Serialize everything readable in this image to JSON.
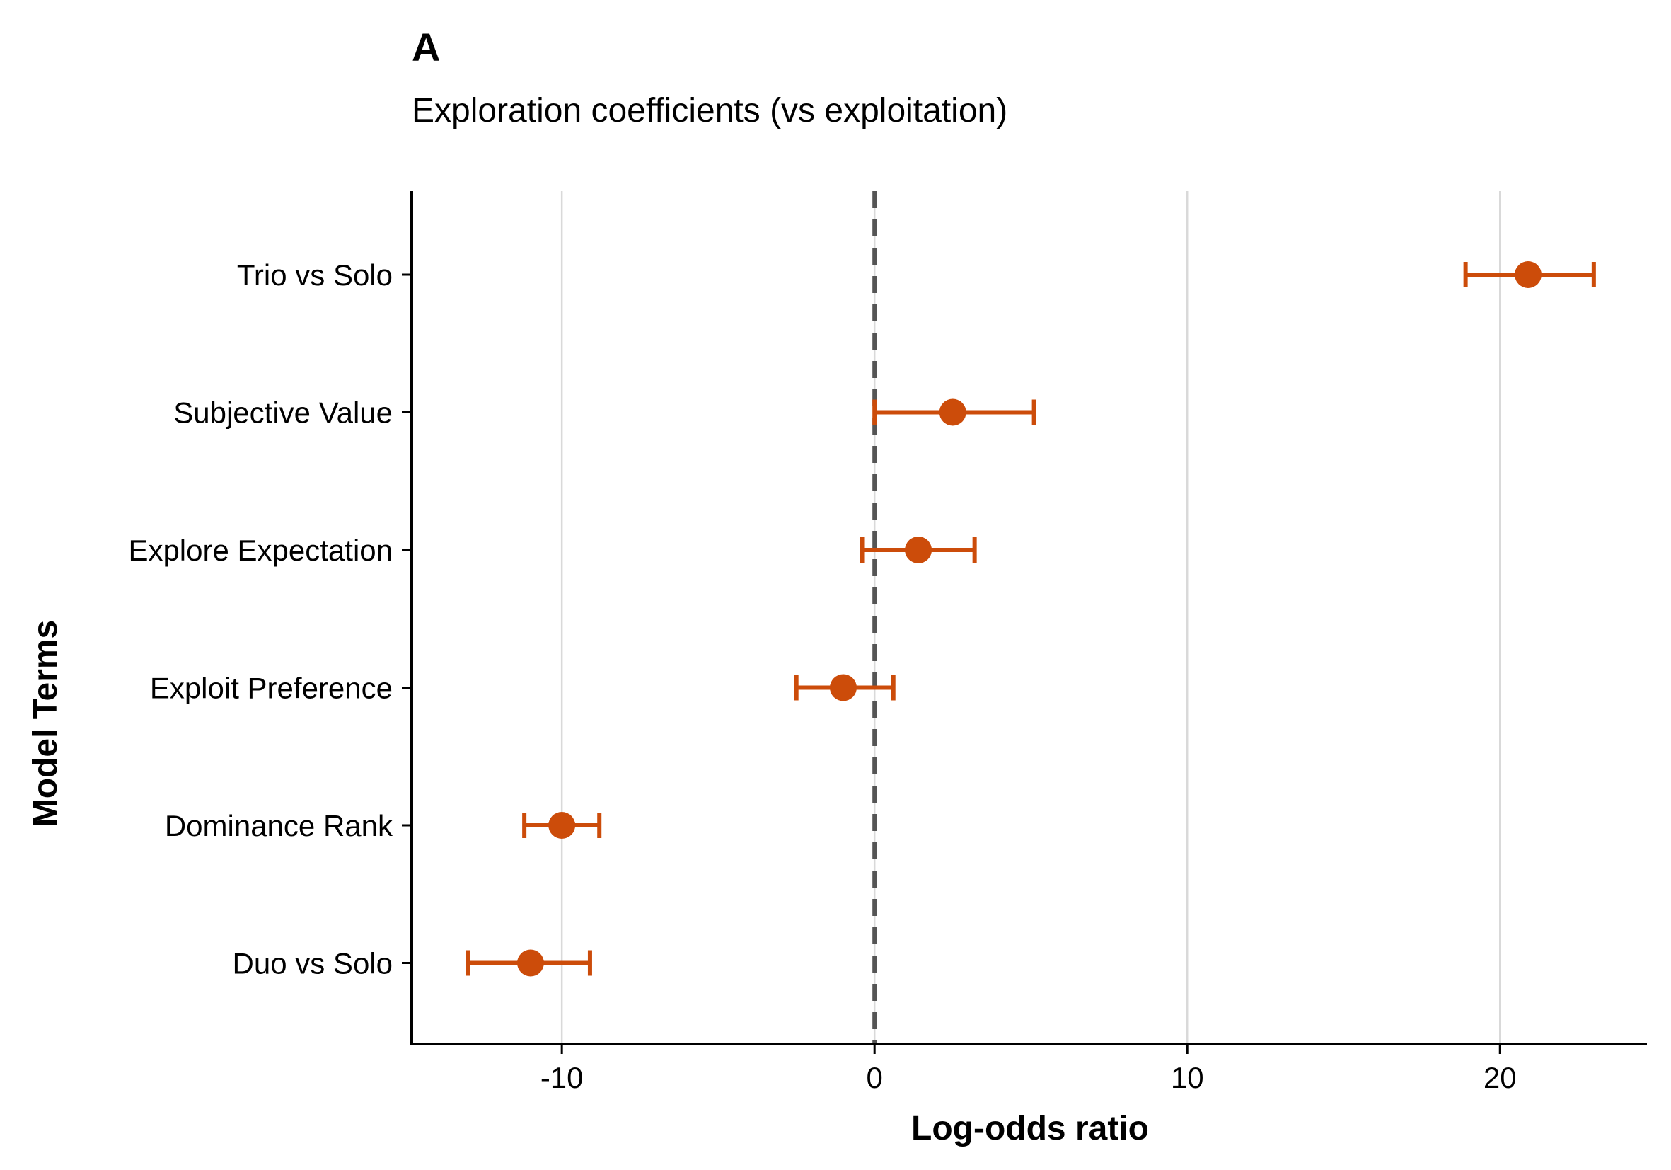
{
  "chart_data": {
    "type": "scatter",
    "panel_tag": "A",
    "title": "Exploration coefficients (vs exploitation)",
    "xlabel": "Log-odds ratio",
    "ylabel": "Model Terms",
    "xlim": [
      -14.8,
      24.7
    ],
    "x_ticks": [
      -10,
      0,
      10,
      20
    ],
    "x_tick_labels": [
      "-10",
      "0",
      "10",
      "20"
    ],
    "reference_line": 0,
    "grid": "vertical major",
    "legend": "none",
    "point_color": "#CC4C0A",
    "reference_color": "#555555",
    "grid_color": "#d9d9d9",
    "terms": [
      {
        "label": "Trio vs Solo",
        "estimate": 20.9,
        "lower": 18.9,
        "upper": 23.0
      },
      {
        "label": "Subjective Value",
        "estimate": 2.5,
        "lower": 0.0,
        "upper": 5.1
      },
      {
        "label": "Explore Expectation",
        "estimate": 1.4,
        "lower": -0.4,
        "upper": 3.2
      },
      {
        "label": "Exploit Preference",
        "estimate": -1.0,
        "lower": -2.5,
        "upper": 0.6
      },
      {
        "label": "Dominance Rank",
        "estimate": -10.0,
        "lower": -11.2,
        "upper": -8.8
      },
      {
        "label": "Duo vs Solo",
        "estimate": -11.0,
        "lower": -13.0,
        "upper": -9.1
      }
    ]
  }
}
